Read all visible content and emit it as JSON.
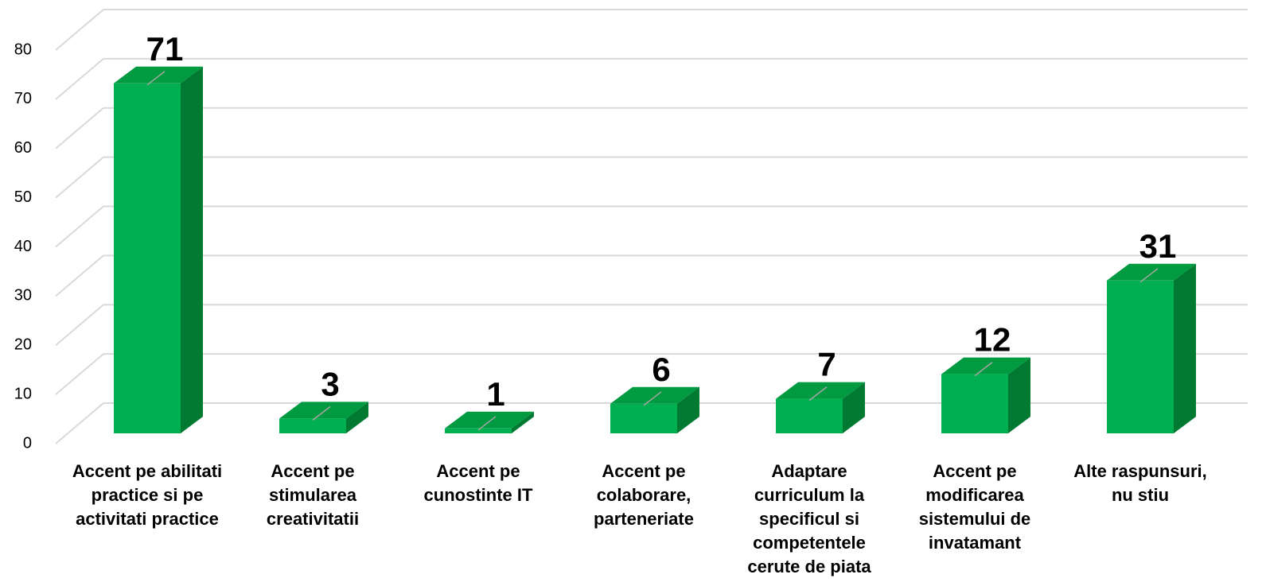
{
  "chart_data": {
    "type": "bar3d",
    "categories": [
      "Accent pe abilitati practice si pe activitati practice",
      "Accent pe stimularea creativitatii",
      "Accent pe cunostinte IT",
      "Accent pe colaborare, parteneriate",
      "Adaptare curriculum la specificul si competentele cerute de piata",
      "Accent pe modificarea sistemului de invatamant",
      "Alte raspunsuri, nu stiu"
    ],
    "values": [
      71,
      3,
      1,
      6,
      7,
      12,
      31
    ],
    "color": "#00b050",
    "ylim": [
      0,
      80
    ],
    "yticks": [
      0,
      10,
      20,
      30,
      40,
      50,
      60,
      70,
      80
    ],
    "grid": true
  }
}
